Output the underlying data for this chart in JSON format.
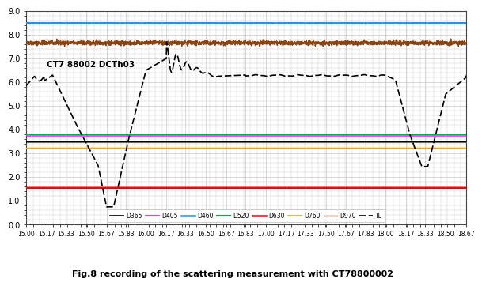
{
  "title": "Fig.8 recording of the scattering measurement with CT78800002",
  "annotation": "CT7 88002 DCTh03",
  "xlim": [
    15.0,
    18.67
  ],
  "ylim": [
    0.0,
    9.0
  ],
  "yticks": [
    0.0,
    1.0,
    2.0,
    3.0,
    4.0,
    5.0,
    6.0,
    7.0,
    8.0,
    9.0
  ],
  "xticks": [
    15.0,
    15.17,
    15.33,
    15.5,
    15.67,
    15.83,
    16.0,
    16.17,
    16.33,
    16.5,
    16.67,
    16.83,
    17.0,
    17.17,
    17.33,
    17.5,
    17.67,
    17.83,
    18.0,
    18.17,
    18.33,
    18.5,
    18.67
  ],
  "lines": {
    "D365": {
      "color": "#000000",
      "value": 3.48,
      "lw": 1.2
    },
    "D405": {
      "color": "#ff00ff",
      "value": 3.7,
      "lw": 1.2
    },
    "D460": {
      "color": "#1e90ff",
      "value": 8.48,
      "lw": 1.8
    },
    "D520": {
      "color": "#00b050",
      "value": 3.78,
      "lw": 1.5
    },
    "D630": {
      "color": "#ff0000",
      "value": 1.55,
      "lw": 1.8
    },
    "D760": {
      "color": "#ffa500",
      "value": 3.22,
      "lw": 1.2
    },
    "D970": {
      "color": "#8B4513",
      "value": 7.65,
      "lw": 1.0
    },
    "TL": {
      "color": "#000000",
      "lw": 1.2,
      "linestyle": "--"
    }
  },
  "bg_color": "#ffffff",
  "grid_color": "#c8c8c8"
}
